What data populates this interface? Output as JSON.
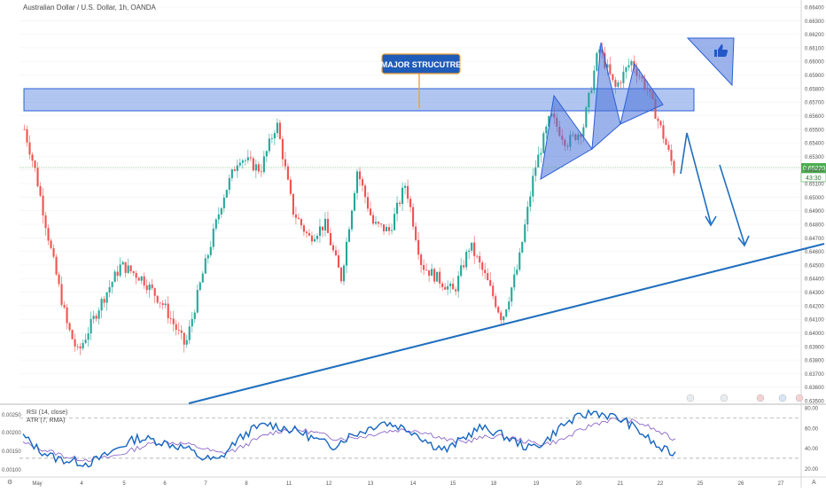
{
  "window": {
    "title": "Australian Dollar / U.S. Dollar, 1h, OANDA"
  },
  "colors": {
    "up": "#26a69a",
    "down": "#ef5350",
    "zone_fill": "#6f97e6",
    "drawing": "#1f6fbf",
    "rsi_line": "#1565c0",
    "rsi_ma": "#7e57c2",
    "price_badge": "#4caf50"
  },
  "annotations": {
    "major_structure": "MAJOR STRUCUTRE",
    "thumbs_icon": "thumbs-up-icon"
  },
  "price_badge": {
    "price": "0.65220",
    "countdown": "43:30"
  },
  "indicator": {
    "rsi_label": "RSI (14, close)",
    "ma_label": "ATR (7, RMA)"
  },
  "chart_data": {
    "type": "candlestick",
    "title": "Australian Dollar / U.S. Dollar, 1h, OANDA",
    "xlabel": "",
    "ylabel": "",
    "ylim": [
      0.635,
      0.664
    ],
    "y_ticks": [
      "0.66400",
      "0.66300",
      "0.66200",
      "0.66100",
      "0.66000",
      "0.65900",
      "0.65800",
      "0.65700",
      "0.65600",
      "0.65500",
      "0.65400",
      "0.65300",
      "0.65200",
      "0.65100",
      "0.65000",
      "0.64900",
      "0.64800",
      "0.64700",
      "0.64600",
      "0.64500",
      "0.64400",
      "0.64300",
      "0.64200",
      "0.64100",
      "0.64000",
      "0.63900",
      "0.63800",
      "0.63700",
      "0.63600",
      "0.63500"
    ],
    "x_ticks": [
      "May",
      "4",
      "5",
      "6",
      "7",
      "8",
      "11",
      "12",
      "13",
      "14",
      "15",
      "18",
      "19",
      "20",
      "21",
      "22",
      "25",
      "26",
      "27"
    ],
    "close_path": [
      {
        "x": 0,
        "y": 0.655
      },
      {
        "x": 2,
        "y": 0.652
      },
      {
        "x": 5,
        "y": 0.646
      },
      {
        "x": 8,
        "y": 0.6405
      },
      {
        "x": 10,
        "y": 0.6385
      },
      {
        "x": 14,
        "y": 0.642
      },
      {
        "x": 18,
        "y": 0.645
      },
      {
        "x": 22,
        "y": 0.644
      },
      {
        "x": 26,
        "y": 0.642
      },
      {
        "x": 30,
        "y": 0.639
      },
      {
        "x": 33,
        "y": 0.644
      },
      {
        "x": 37,
        "y": 0.65
      },
      {
        "x": 40,
        "y": 0.653
      },
      {
        "x": 44,
        "y": 0.652
      },
      {
        "x": 47,
        "y": 0.6555
      },
      {
        "x": 50,
        "y": 0.649
      },
      {
        "x": 53,
        "y": 0.647
      },
      {
        "x": 56,
        "y": 0.648
      },
      {
        "x": 59,
        "y": 0.644
      },
      {
        "x": 62,
        "y": 0.652
      },
      {
        "x": 65,
        "y": 0.648
      },
      {
        "x": 68,
        "y": 0.6475
      },
      {
        "x": 71,
        "y": 0.651
      },
      {
        "x": 74,
        "y": 0.645
      },
      {
        "x": 77,
        "y": 0.644
      },
      {
        "x": 80,
        "y": 0.643
      },
      {
        "x": 83,
        "y": 0.6465
      },
      {
        "x": 86,
        "y": 0.644
      },
      {
        "x": 89,
        "y": 0.641
      },
      {
        "x": 92,
        "y": 0.645
      },
      {
        "x": 95,
        "y": 0.652
      },
      {
        "x": 98,
        "y": 0.656
      },
      {
        "x": 101,
        "y": 0.654
      },
      {
        "x": 104,
        "y": 0.655
      },
      {
        "x": 107,
        "y": 0.661
      },
      {
        "x": 110,
        "y": 0.658
      },
      {
        "x": 113,
        "y": 0.66
      },
      {
        "x": 116,
        "y": 0.658
      },
      {
        "x": 119,
        "y": 0.6545
      },
      {
        "x": 121,
        "y": 0.652
      }
    ],
    "rsi": {
      "name": "RSI (14, close)",
      "ylim": [
        15,
        80
      ],
      "y_ticks": [
        "80.00",
        "60.00",
        "40.00",
        "20.00"
      ],
      "levels": [
        70,
        30
      ],
      "values": [
        52,
        38,
        30,
        27,
        25,
        32,
        42,
        50,
        48,
        44,
        40,
        30,
        28,
        46,
        58,
        64,
        60,
        56,
        48,
        42,
        52,
        58,
        66,
        62,
        56,
        44,
        38,
        50,
        60,
        56,
        48,
        40,
        46,
        62,
        70,
        76,
        72,
        66,
        54,
        40,
        34
      ]
    },
    "rsi_ma_values": [
      45,
      40,
      35,
      30,
      29,
      30,
      34,
      40,
      45,
      46,
      44,
      40,
      35,
      38,
      46,
      54,
      58,
      58,
      55,
      50,
      50,
      52,
      56,
      58,
      58,
      54,
      48,
      46,
      50,
      52,
      50,
      46,
      44,
      48,
      56,
      64,
      68,
      68,
      64,
      56,
      48
    ],
    "atr_axis_ticks": [
      "0.00250",
      "0.00200",
      "0.00150",
      "0.00100"
    ]
  }
}
